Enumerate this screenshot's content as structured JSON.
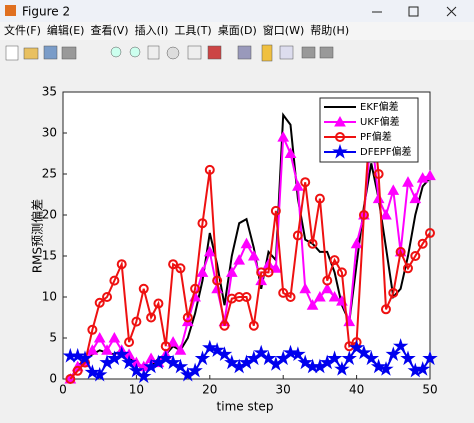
{
  "window": {
    "title": "Figure 2",
    "menu": [
      "文件(F)",
      "编辑(E)",
      "查看(V)",
      "插入(I)",
      "工具(T)",
      "桌面(D)",
      "窗口(W)",
      "帮助(H)"
    ]
  },
  "chart_data": {
    "type": "line",
    "xlabel": "time step",
    "ylabel": "RMS预测偏差",
    "x": [
      1,
      2,
      3,
      4,
      5,
      6,
      7,
      8,
      9,
      10,
      11,
      12,
      13,
      14,
      15,
      16,
      17,
      18,
      19,
      20,
      21,
      22,
      23,
      24,
      25,
      26,
      27,
      28,
      29,
      30,
      31,
      32,
      33,
      34,
      35,
      36,
      37,
      38,
      39,
      40,
      41,
      42,
      43,
      44,
      45,
      46,
      47,
      48,
      49,
      50
    ],
    "series": [
      {
        "name": "EKF偏差",
        "color": "#000000",
        "marker": "none",
        "values": [
          0,
          1.5,
          2.5,
          3,
          3.5,
          3.2,
          3,
          3.5,
          2.5,
          2,
          1,
          1.5,
          2.5,
          3,
          4,
          3.5,
          5,
          8,
          12,
          17.8,
          14,
          9,
          15,
          19,
          19.5,
          16,
          11,
          15.5,
          14.5,
          32.2,
          31,
          22,
          17,
          16.5,
          15.5,
          15.5,
          13,
          9,
          7,
          14,
          21,
          26.3,
          22,
          16,
          10,
          11,
          15,
          20,
          23.5,
          24.5
        ]
      },
      {
        "name": "UKF偏差",
        "color": "#ff00ff",
        "marker": "triangle",
        "values": [
          0,
          1.5,
          2,
          3.5,
          5,
          3.5,
          5,
          3.5,
          3,
          2,
          1.5,
          2.5,
          2,
          3,
          4.5,
          3.5,
          7,
          10,
          13,
          15.5,
          11,
          7,
          13,
          14.5,
          16.5,
          15,
          12,
          14,
          13.5,
          29.5,
          27.5,
          23.5,
          11,
          9,
          10,
          11,
          10,
          9.5,
          7,
          16.5,
          20,
          30,
          22,
          20,
          23,
          15.5,
          24,
          22,
          24.5,
          24.8
        ]
      },
      {
        "name": "PF偏差",
        "color": "#ee1111",
        "marker": "circle",
        "values": [
          0,
          1,
          2,
          6,
          9.3,
          10,
          12,
          14,
          4.5,
          7,
          11,
          7.5,
          9.2,
          4,
          14,
          13.5,
          7.5,
          11,
          19,
          25.5,
          12,
          6.5,
          9.8,
          10,
          10,
          6.5,
          13,
          13,
          20.5,
          10.5,
          10,
          17.5,
          24,
          16.5,
          22,
          12,
          14.5,
          13,
          4,
          4.5,
          20,
          33.5,
          25,
          8.5,
          10.5,
          15.5,
          13.5,
          15,
          16.5,
          17.8
        ]
      },
      {
        "name": "DFEPF偏差",
        "color": "#0000ee",
        "marker": "star",
        "values": [
          2.8,
          2.8,
          2.5,
          0.8,
          0.5,
          2,
          2.5,
          3,
          2,
          1,
          0.3,
          1.5,
          2,
          2.5,
          2,
          1.5,
          0.5,
          1,
          2.5,
          3.8,
          3.5,
          3,
          2,
          1.5,
          2,
          2.5,
          3.2,
          2.5,
          1.8,
          2.5,
          3.2,
          3,
          2,
          1.5,
          1.5,
          2,
          2.5,
          1.2,
          2.5,
          3.8,
          3.2,
          2.5,
          1.5,
          1.2,
          3,
          4,
          2.5,
          1,
          1.2,
          2.5
        ]
      }
    ],
    "xlim": [
      0,
      50
    ],
    "xticks": [
      0,
      10,
      20,
      30,
      40,
      50
    ],
    "ylim": [
      0,
      35
    ],
    "yticks": [
      0,
      5,
      10,
      15,
      20,
      25,
      30,
      35
    ],
    "legend": "northeast"
  }
}
